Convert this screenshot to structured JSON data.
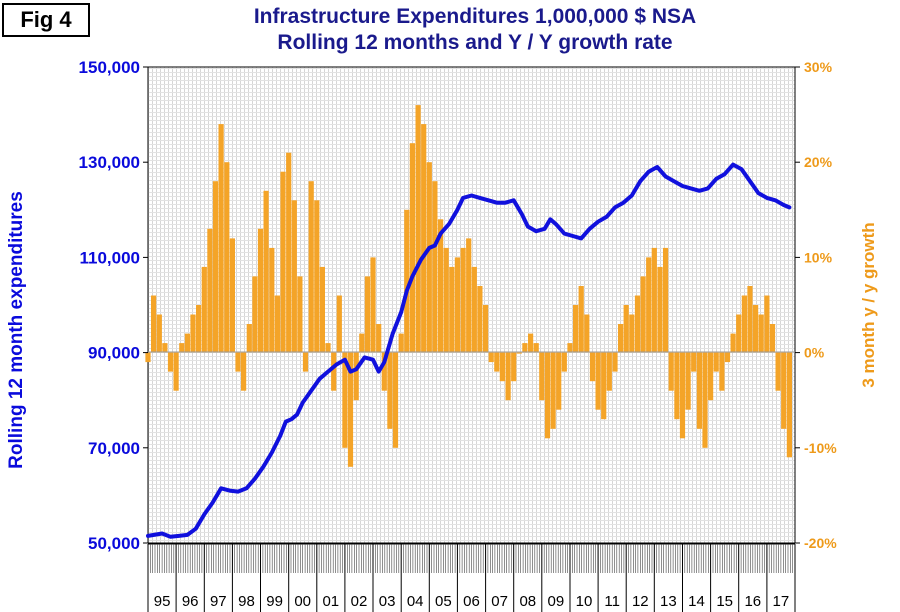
{
  "figure_label": "Fig 4",
  "chart_data": {
    "type": "bar+line",
    "title_line1": "Infrastructure Expenditures 1,000,000 $ NSA",
    "title_line2": "Rolling 12 months and Y / Y growth rate",
    "ylabel_left": "Rolling 12 month expenditures",
    "ylabel_right": "3 month y / y growth",
    "ylim_left": [
      50000,
      150000
    ],
    "ylim_right": [
      -20,
      30
    ],
    "yticks_left": [
      "50,000",
      "70,000",
      "90,000",
      "110,000",
      "130,000",
      "150,000"
    ],
    "yticks_left_values": [
      50000,
      70000,
      90000,
      110000,
      130000,
      150000
    ],
    "yticks_right": [
      "-20%",
      "-10%",
      "0%",
      "10%",
      "20%",
      "30%"
    ],
    "yticks_right_values": [
      -20,
      -10,
      0,
      10,
      20,
      30
    ],
    "x_start": 1994.5,
    "x_end": 2017.5,
    "year_labels": [
      "95",
      "96",
      "97",
      "98",
      "99",
      "00",
      "01",
      "02",
      "03",
      "04",
      "05",
      "06",
      "07",
      "08",
      "09",
      "10",
      "11",
      "12",
      "13",
      "14",
      "15",
      "16",
      "17"
    ],
    "line_series": {
      "name": "Rolling 12 month expenditures",
      "color": "#1010dd",
      "points": [
        [
          1994.5,
          51500
        ],
        [
          1995.0,
          52000
        ],
        [
          1995.3,
          51300
        ],
        [
          1995.6,
          51500
        ],
        [
          1995.9,
          51700
        ],
        [
          1996.2,
          53000
        ],
        [
          1996.5,
          56000
        ],
        [
          1996.8,
          58500
        ],
        [
          1997.1,
          61500
        ],
        [
          1997.4,
          61000
        ],
        [
          1997.7,
          60800
        ],
        [
          1998.0,
          61500
        ],
        [
          1998.3,
          63500
        ],
        [
          1998.6,
          66000
        ],
        [
          1998.9,
          69000
        ],
        [
          1999.2,
          72500
        ],
        [
          1999.4,
          75500
        ],
        [
          1999.6,
          76000
        ],
        [
          1999.8,
          77000
        ],
        [
          2000.0,
          79500
        ],
        [
          2000.3,
          82000
        ],
        [
          2000.6,
          84500
        ],
        [
          2000.9,
          86000
        ],
        [
          2001.2,
          87500
        ],
        [
          2001.5,
          88500
        ],
        [
          2001.7,
          86000
        ],
        [
          2001.9,
          86500
        ],
        [
          2002.2,
          89000
        ],
        [
          2002.5,
          88500
        ],
        [
          2002.7,
          86000
        ],
        [
          2002.9,
          88000
        ],
        [
          2003.2,
          94000
        ],
        [
          2003.5,
          98500
        ],
        [
          2003.7,
          103000
        ],
        [
          2003.9,
          106000
        ],
        [
          2004.2,
          109500
        ],
        [
          2004.5,
          112000
        ],
        [
          2004.7,
          112500
        ],
        [
          2004.9,
          115000
        ],
        [
          2005.2,
          117000
        ],
        [
          2005.5,
          120000
        ],
        [
          2005.7,
          122500
        ],
        [
          2006.0,
          123000
        ],
        [
          2006.3,
          122500
        ],
        [
          2006.6,
          122000
        ],
        [
          2006.9,
          121500
        ],
        [
          2007.2,
          121500
        ],
        [
          2007.5,
          122000
        ],
        [
          2007.8,
          119000
        ],
        [
          2008.0,
          116500
        ],
        [
          2008.3,
          115500
        ],
        [
          2008.6,
          116000
        ],
        [
          2008.8,
          118000
        ],
        [
          2009.0,
          117000
        ],
        [
          2009.3,
          115000
        ],
        [
          2009.6,
          114500
        ],
        [
          2009.9,
          114000
        ],
        [
          2010.2,
          116000
        ],
        [
          2010.5,
          117500
        ],
        [
          2010.8,
          118500
        ],
        [
          2011.1,
          120500
        ],
        [
          2011.4,
          121500
        ],
        [
          2011.7,
          123000
        ],
        [
          2012.0,
          126000
        ],
        [
          2012.3,
          128000
        ],
        [
          2012.6,
          129000
        ],
        [
          2012.9,
          127000
        ],
        [
          2013.2,
          126000
        ],
        [
          2013.5,
          125000
        ],
        [
          2013.8,
          124500
        ],
        [
          2014.1,
          124000
        ],
        [
          2014.4,
          124500
        ],
        [
          2014.7,
          126500
        ],
        [
          2015.0,
          127500
        ],
        [
          2015.3,
          129500
        ],
        [
          2015.6,
          128500
        ],
        [
          2015.9,
          126000
        ],
        [
          2016.2,
          123500
        ],
        [
          2016.5,
          122500
        ],
        [
          2016.8,
          122000
        ],
        [
          2017.1,
          121000
        ],
        [
          2017.3,
          120500
        ]
      ]
    },
    "bar_series": {
      "name": "3 month y / y growth (%)",
      "color": "#f4a428",
      "points": [
        [
          1994.5,
          -1
        ],
        [
          1994.7,
          6
        ],
        [
          1994.9,
          4
        ],
        [
          1995.1,
          1
        ],
        [
          1995.3,
          -2
        ],
        [
          1995.5,
          -4
        ],
        [
          1995.7,
          1
        ],
        [
          1995.9,
          2
        ],
        [
          1996.1,
          4
        ],
        [
          1996.3,
          5
        ],
        [
          1996.5,
          9
        ],
        [
          1996.7,
          13
        ],
        [
          1996.9,
          18
        ],
        [
          1997.1,
          24
        ],
        [
          1997.3,
          20
        ],
        [
          1997.5,
          12
        ],
        [
          1997.7,
          -2
        ],
        [
          1997.9,
          -4
        ],
        [
          1998.1,
          3
        ],
        [
          1998.3,
          8
        ],
        [
          1998.5,
          13
        ],
        [
          1998.7,
          17
        ],
        [
          1998.9,
          11
        ],
        [
          1999.1,
          6
        ],
        [
          1999.3,
          19
        ],
        [
          1999.5,
          21
        ],
        [
          1999.7,
          16
        ],
        [
          1999.9,
          8
        ],
        [
          2000.1,
          -2
        ],
        [
          2000.3,
          18
        ],
        [
          2000.5,
          16
        ],
        [
          2000.7,
          9
        ],
        [
          2000.9,
          1
        ],
        [
          2001.1,
          -4
        ],
        [
          2001.3,
          6
        ],
        [
          2001.5,
          -10
        ],
        [
          2001.7,
          -12
        ],
        [
          2001.9,
          -5
        ],
        [
          2002.1,
          2
        ],
        [
          2002.3,
          8
        ],
        [
          2002.5,
          10
        ],
        [
          2002.7,
          3
        ],
        [
          2002.9,
          -4
        ],
        [
          2003.1,
          -8
        ],
        [
          2003.3,
          -10
        ],
        [
          2003.5,
          2
        ],
        [
          2003.7,
          15
        ],
        [
          2003.9,
          22
        ],
        [
          2004.1,
          26
        ],
        [
          2004.3,
          24
        ],
        [
          2004.5,
          20
        ],
        [
          2004.7,
          18
        ],
        [
          2004.9,
          14
        ],
        [
          2005.1,
          11
        ],
        [
          2005.3,
          9
        ],
        [
          2005.5,
          10
        ],
        [
          2005.7,
          11
        ],
        [
          2005.9,
          12
        ],
        [
          2006.1,
          9
        ],
        [
          2006.3,
          7
        ],
        [
          2006.5,
          5
        ],
        [
          2006.7,
          -1
        ],
        [
          2006.9,
          -2
        ],
        [
          2007.1,
          -3
        ],
        [
          2007.3,
          -5
        ],
        [
          2007.5,
          -3
        ],
        [
          2007.7,
          0
        ],
        [
          2007.9,
          1
        ],
        [
          2008.1,
          2
        ],
        [
          2008.3,
          1
        ],
        [
          2008.5,
          -5
        ],
        [
          2008.7,
          -9
        ],
        [
          2008.9,
          -8
        ],
        [
          2009.1,
          -6
        ],
        [
          2009.3,
          -2
        ],
        [
          2009.5,
          1
        ],
        [
          2009.7,
          5
        ],
        [
          2009.9,
          7
        ],
        [
          2010.1,
          4
        ],
        [
          2010.3,
          -3
        ],
        [
          2010.5,
          -6
        ],
        [
          2010.7,
          -7
        ],
        [
          2010.9,
          -4
        ],
        [
          2011.1,
          -2
        ],
        [
          2011.3,
          3
        ],
        [
          2011.5,
          5
        ],
        [
          2011.7,
          4
        ],
        [
          2011.9,
          6
        ],
        [
          2012.1,
          8
        ],
        [
          2012.3,
          10
        ],
        [
          2012.5,
          11
        ],
        [
          2012.7,
          9
        ],
        [
          2012.9,
          11
        ],
        [
          2013.1,
          -4
        ],
        [
          2013.3,
          -7
        ],
        [
          2013.5,
          -9
        ],
        [
          2013.7,
          -6
        ],
        [
          2013.9,
          -2
        ],
        [
          2014.1,
          -8
        ],
        [
          2014.3,
          -10
        ],
        [
          2014.5,
          -5
        ],
        [
          2014.7,
          -2
        ],
        [
          2014.9,
          -4
        ],
        [
          2015.1,
          -1
        ],
        [
          2015.3,
          2
        ],
        [
          2015.5,
          4
        ],
        [
          2015.7,
          6
        ],
        [
          2015.9,
          7
        ],
        [
          2016.1,
          5
        ],
        [
          2016.3,
          4
        ],
        [
          2016.5,
          6
        ],
        [
          2016.7,
          3
        ],
        [
          2016.9,
          -4
        ],
        [
          2017.1,
          -8
        ],
        [
          2017.3,
          -11
        ]
      ]
    }
  }
}
